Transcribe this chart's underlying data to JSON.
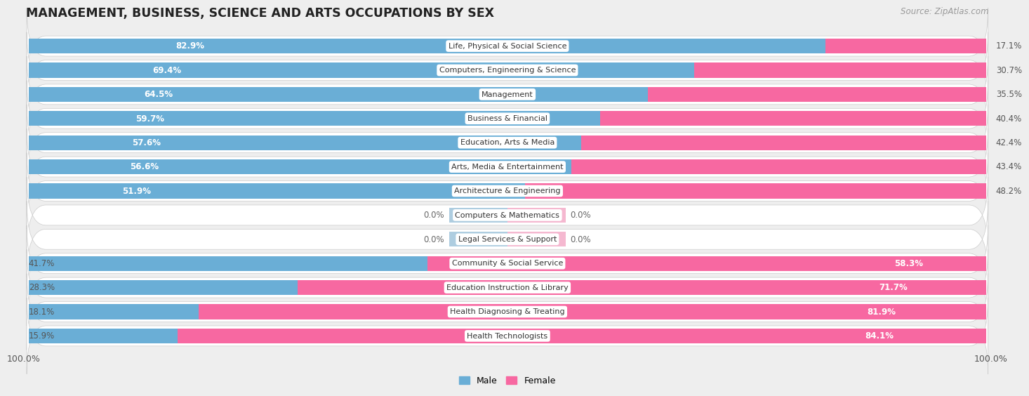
{
  "title": "MANAGEMENT, BUSINESS, SCIENCE AND ARTS OCCUPATIONS BY SEX",
  "source": "Source: ZipAtlas.com",
  "categories": [
    "Life, Physical & Social Science",
    "Computers, Engineering & Science",
    "Management",
    "Business & Financial",
    "Education, Arts & Media",
    "Arts, Media & Entertainment",
    "Architecture & Engineering",
    "Computers & Mathematics",
    "Legal Services & Support",
    "Community & Social Service",
    "Education Instruction & Library",
    "Health Diagnosing & Treating",
    "Health Technologists"
  ],
  "male_values": [
    82.9,
    69.4,
    64.5,
    59.7,
    57.6,
    56.6,
    51.9,
    0.0,
    0.0,
    41.7,
    28.3,
    18.1,
    15.9
  ],
  "female_values": [
    17.1,
    30.7,
    35.5,
    40.4,
    42.4,
    43.4,
    48.2,
    0.0,
    0.0,
    58.3,
    71.7,
    81.9,
    84.1
  ],
  "male_color": "#6aaed6",
  "female_color": "#f768a1",
  "male_color_zero": "#aecde0",
  "female_color_zero": "#f5b8d0",
  "bg_color": "#eeeeee",
  "row_bg_color": "#ffffff",
  "bar_height": 0.62,
  "title_fontsize": 12.5,
  "label_fontsize": 8.5,
  "tick_fontsize": 9,
  "source_fontsize": 8.5,
  "cat_label_fontsize": 8.0
}
